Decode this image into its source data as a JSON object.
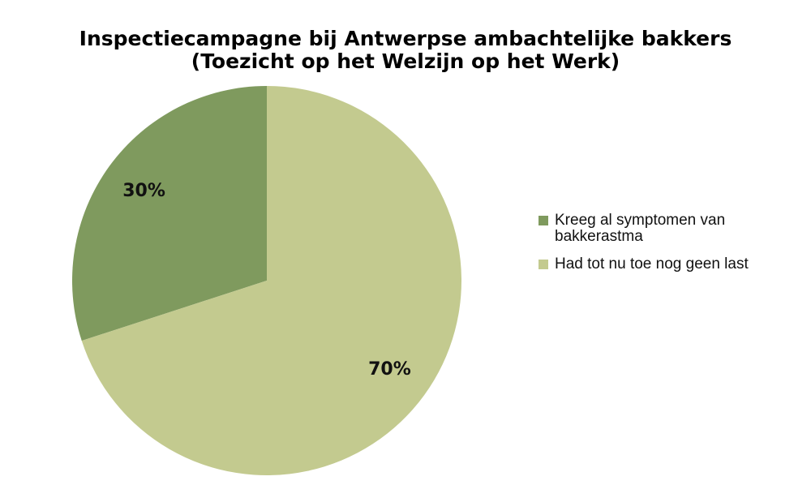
{
  "chart_data": {
    "type": "pie",
    "title": "Inspectiecampagne bij Antwerpse ambachtelijke bakkers",
    "subtitle": "(Toezicht op het Welzijn op het Werk)",
    "categories": [
      "Kreeg al symptomen van bakkerastma",
      "Had tot nu toe nog geen last"
    ],
    "values": [
      30,
      70
    ],
    "value_labels": [
      "30%",
      "70%"
    ],
    "colors": [
      "#7f9a5e",
      "#c3ca8f"
    ],
    "legend": "right"
  }
}
